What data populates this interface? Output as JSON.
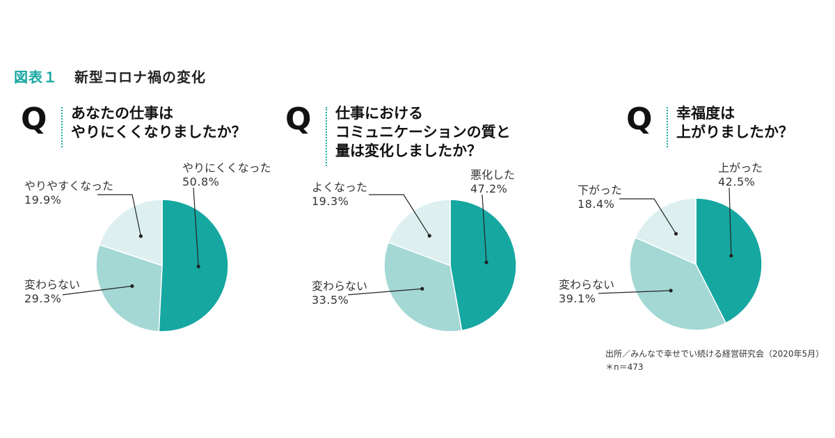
{
  "figure": {
    "number": "図表１",
    "title": "新型コロナ禍の変化"
  },
  "colors": {
    "accent": "#16a7a1",
    "series_dark": "#16a7a1",
    "series_mid": "#a4d8d5",
    "series_light": "#ddf0ef"
  },
  "question_mark": "Q",
  "chart_data": [
    {
      "type": "pie",
      "title_lines": [
        "あなたの仕事は",
        "やりにくくなりましたか？"
      ],
      "slices": [
        {
          "label": "やりにくくなった",
          "value": 50.8,
          "value_text": "50.8%",
          "color": "#16a7a1"
        },
        {
          "label": "変わらない",
          "value": 29.3,
          "value_text": "29.3%",
          "color": "#a4d8d5"
        },
        {
          "label": "やりやすくなった",
          "value": 19.9,
          "value_text": "19.9%",
          "color": "#ddf0ef"
        }
      ]
    },
    {
      "type": "pie",
      "title_lines": [
        "仕事における",
        "コミュニケーションの質と",
        "量は変化しましたか？"
      ],
      "slices": [
        {
          "label": "悪化した",
          "value": 47.2,
          "value_text": "47.2%",
          "color": "#16a7a1"
        },
        {
          "label": "変わらない",
          "value": 33.5,
          "value_text": "33.5%",
          "color": "#a4d8d5"
        },
        {
          "label": "よくなった",
          "value": 19.3,
          "value_text": "19.3%",
          "color": "#ddf0ef"
        }
      ]
    },
    {
      "type": "pie",
      "title_lines": [
        "幸福度は",
        "上がりましたか？"
      ],
      "slices": [
        {
          "label": "上がった",
          "value": 42.5,
          "value_text": "42.5%",
          "color": "#16a7a1"
        },
        {
          "label": "変わらない",
          "value": 39.1,
          "value_text": "39.1%",
          "color": "#a4d8d5"
        },
        {
          "label": "下がった",
          "value": 18.4,
          "value_text": "18.4%",
          "color": "#ddf0ef"
        }
      ]
    }
  ],
  "source": {
    "line1": "出所／みんなで幸せでい続ける経営研究会（2020年5月）",
    "line2": "＊n＝473"
  }
}
